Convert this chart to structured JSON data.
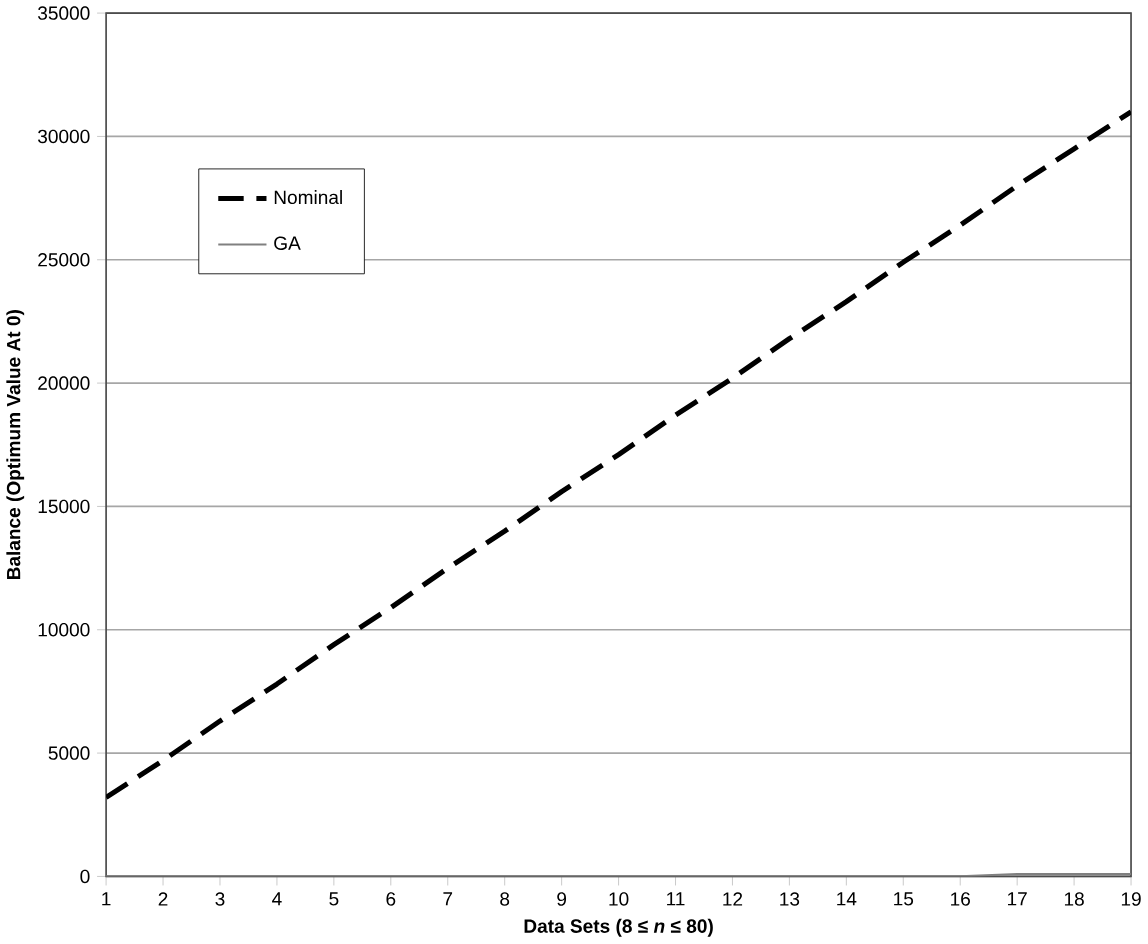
{
  "chart_data": {
    "type": "line",
    "xlabel": "Data Sets (8 ≤ *n* ≤ 80)",
    "ylabel": "Balance (Optimum Value At 0)",
    "categories": [
      "1",
      "2",
      "3",
      "4",
      "5",
      "6",
      "7",
      "8",
      "9",
      "10",
      "11",
      "12",
      "13",
      "14",
      "15",
      "16",
      "17",
      "18",
      "19"
    ],
    "ylim": [
      0,
      35000
    ],
    "yticks": [
      0,
      5000,
      10000,
      15000,
      20000,
      25000,
      30000,
      35000
    ],
    "grid": "y",
    "legend": "top left",
    "marker": "none",
    "series": [
      {
        "name": "Nominal",
        "color": "#000000",
        "line_style": "dashed",
        "values": [
          3200,
          4700,
          6300,
          7800,
          9400,
          10900,
          12500,
          14000,
          15600,
          17100,
          18700,
          20200,
          21800,
          23300,
          24900,
          26400,
          28000,
          29500,
          31000
        ]
      },
      {
        "name": "GA",
        "color": "#808080",
        "line_style": "solid",
        "values": [
          0,
          0,
          0,
          0,
          0,
          0,
          0,
          0,
          0,
          0,
          0,
          0,
          0,
          0,
          0,
          0,
          100,
          100,
          100
        ]
      }
    ]
  }
}
